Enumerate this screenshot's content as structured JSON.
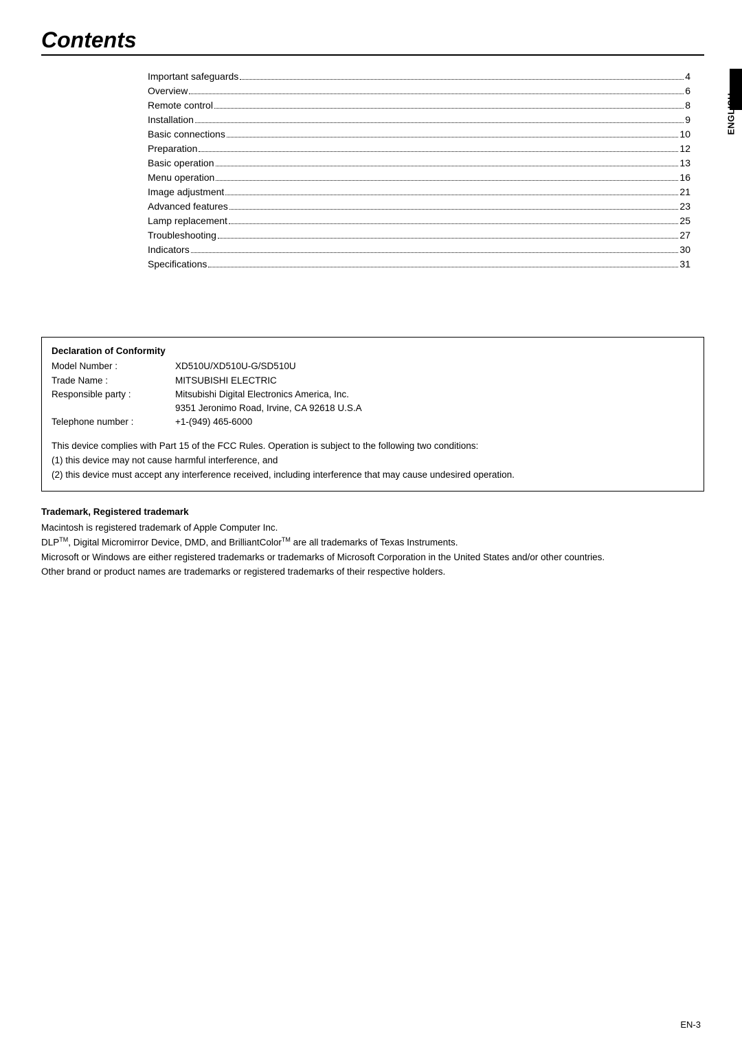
{
  "title": "Contents",
  "side_tab": "ENGLISH",
  "toc": [
    {
      "label": "Important safeguards",
      "page": "4"
    },
    {
      "label": "Overview",
      "page": "6"
    },
    {
      "label": "Remote control",
      "page": "8"
    },
    {
      "label": "Installation",
      "page": "9"
    },
    {
      "label": "Basic connections",
      "page": "10"
    },
    {
      "label": "Preparation",
      "page": "12"
    },
    {
      "label": "Basic operation",
      "page": "13"
    },
    {
      "label": "Menu operation",
      "page": "16"
    },
    {
      "label": "Image adjustment",
      "page": "21"
    },
    {
      "label": "Advanced features",
      "page": "23"
    },
    {
      "label": "Lamp replacement",
      "page": "25"
    },
    {
      "label": "Troubleshooting",
      "page": "27"
    },
    {
      "label": "Indicators",
      "page": "30"
    },
    {
      "label": "Specifications",
      "page": "31"
    }
  ],
  "declaration": {
    "heading": "Declaration of Conformity",
    "rows": [
      {
        "label": "Model Number :",
        "value": "XD510U/XD510U-G/SD510U"
      },
      {
        "label": "Trade Name :",
        "value": "MITSUBISHI ELECTRIC"
      },
      {
        "label": "Responsible party :",
        "value": "Mitsubishi Digital Electronics America, Inc."
      },
      {
        "label": "",
        "value": "9351 Jeronimo Road, Irvine, CA 92618 U.S.A"
      },
      {
        "label": "Telephone number :",
        "value": "+1-(949) 465-6000"
      }
    ],
    "body": [
      "This device complies with Part 15 of the FCC Rules. Operation is subject to the following two conditions:",
      "(1) this device may not cause harmful interference, and",
      "(2) this device must accept any interference received, including interference that may cause undesired operation."
    ]
  },
  "trademark": {
    "heading": "Trademark, Registered trademark",
    "line1": "Macintosh is registered trademark of Apple Computer Inc.",
    "line2_a": "DLP",
    "line2_b": ", Digital Micromirror Device, DMD, and BrilliantColor",
    "line2_c": " are all trademarks of Texas Instruments.",
    "sup": "TM",
    "line3": "Microsoft or Windows are either registered trademarks or trademarks of Microsoft Corporation in the United States and/or other countries.",
    "line4": "Other brand or product names are trademarks or registered trademarks of their respective holders."
  },
  "page_number": "EN-3"
}
